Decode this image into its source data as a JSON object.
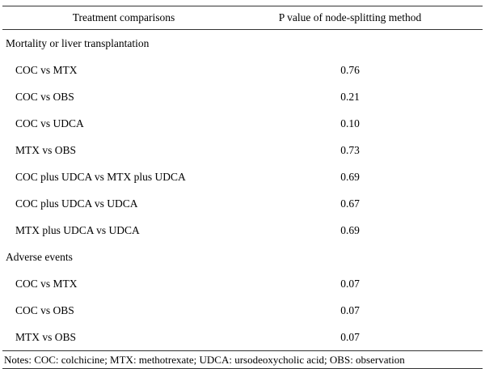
{
  "table": {
    "columns": [
      "Treatment comparisons",
      "P value of node-splitting method"
    ],
    "sections": [
      {
        "title": "Mortality or liver transplantation",
        "rows": [
          {
            "comparison": "COC vs MTX",
            "p_value": "0.76"
          },
          {
            "comparison": "COC vs OBS",
            "p_value": "0.21"
          },
          {
            "comparison": "COC vs UDCA",
            "p_value": "0.10"
          },
          {
            "comparison": "MTX vs OBS",
            "p_value": "0.73"
          },
          {
            "comparison": "COC plus UDCA vs MTX plus UDCA",
            "p_value": "0.69"
          },
          {
            "comparison": "COC plus UDCA vs UDCA",
            "p_value": "0.67"
          },
          {
            "comparison": "MTX plus UDCA vs UDCA",
            "p_value": "0.69"
          }
        ]
      },
      {
        "title": "Adverse events",
        "rows": [
          {
            "comparison": "COC vs MTX",
            "p_value": "0.07"
          },
          {
            "comparison": "COC vs OBS",
            "p_value": "0.07"
          },
          {
            "comparison": "MTX vs OBS",
            "p_value": "0.07"
          }
        ]
      }
    ],
    "notes": "Notes: COC: colchicine; MTX: methotrexate; UDCA: ursodeoxycholic acid; OBS: observation"
  }
}
